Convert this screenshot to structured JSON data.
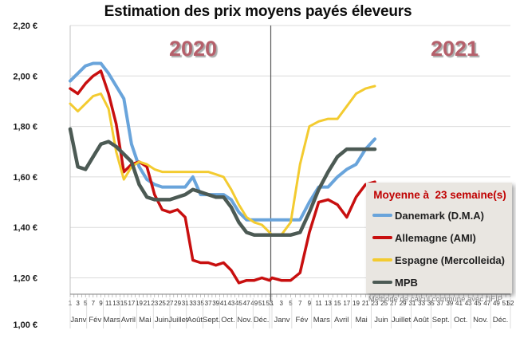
{
  "title": "Estimation des prix moyens payés éleveurs",
  "year_labels": [
    "2020",
    "2021"
  ],
  "footnote": "Méthode de calcul commune avec l'IFIP",
  "legend": {
    "title": "Moyenne à  23 semaine(s)",
    "items": [
      {
        "label": "Danemark (D.M.A)",
        "color": "#69A4DB"
      },
      {
        "label": "Allemagne (AMI)",
        "color": "#C80F0F"
      },
      {
        "label": "Espagne (Mercolleida)",
        "color": "#F3CB30"
      },
      {
        "label": "MPB",
        "color": "#4C5A54"
      }
    ]
  },
  "chart_data": {
    "type": "line",
    "title": "Estimation des prix moyens payés éleveurs",
    "xlabel": "",
    "ylabel": "",
    "ylim": [
      1.13,
      2.2
    ],
    "grid": true,
    "legend_position": "right-middle",
    "y_axis": {
      "ticks": [
        "2,20 €",
        "2,00 €",
        "1,80 €",
        "1,60 €",
        "1,40 €",
        "1,20 €",
        "1,00 €"
      ],
      "values": [
        2.2,
        2.0,
        1.8,
        1.6,
        1.4,
        1.2,
        1.0
      ]
    },
    "x_axis": {
      "weeks_2020": [
        1,
        3,
        5,
        7,
        9,
        11,
        13,
        15,
        17,
        19,
        21,
        23,
        25,
        27,
        29,
        31,
        33,
        35,
        37,
        39,
        41,
        43,
        45,
        47,
        49,
        51,
        53
      ],
      "weeks_2021": [
        1,
        3,
        5,
        7,
        9,
        11,
        13,
        15,
        17,
        19,
        21,
        23,
        25,
        27,
        29,
        31,
        33,
        35,
        37,
        39,
        41,
        43,
        45,
        47,
        49,
        51,
        52
      ],
      "months": [
        "Janv",
        "Fév",
        "Mars",
        "Avril",
        "Mai",
        "Juin",
        "Juillet",
        "Août",
        "Sept.",
        "Oct.",
        "Nov.",
        "Déc."
      ]
    },
    "series": [
      {
        "name": "Danemark (D.M.A)",
        "color": "#69A4DB",
        "y2020": [
          1.98,
          2.01,
          2.04,
          2.05,
          2.05,
          2.01,
          1.96,
          1.91,
          1.73,
          1.64,
          1.59,
          1.57,
          1.56,
          1.56,
          1.56,
          1.56,
          1.6,
          1.53,
          1.53,
          1.53,
          1.53,
          1.51,
          1.46,
          1.43,
          1.43,
          1.43,
          1.43
        ],
        "y2021": [
          1.43,
          1.43,
          1.43,
          1.43,
          1.5,
          1.56,
          1.56,
          1.6,
          1.63,
          1.65,
          1.71,
          1.75
        ]
      },
      {
        "name": "Allemagne (AMI)",
        "color": "#C80F0F",
        "y2020": [
          1.95,
          1.93,
          1.97,
          2.0,
          2.02,
          1.93,
          1.81,
          1.62,
          1.65,
          1.66,
          1.64,
          1.53,
          1.47,
          1.46,
          1.47,
          1.44,
          1.27,
          1.26,
          1.26,
          1.25,
          1.26,
          1.23,
          1.18,
          1.19,
          1.19,
          1.2,
          1.19
        ],
        "y2021": [
          1.2,
          1.19,
          1.19,
          1.22,
          1.38,
          1.5,
          1.51,
          1.49,
          1.44,
          1.52,
          1.57,
          1.58
        ]
      },
      {
        "name": "Espagne (Mercolleida)",
        "color": "#F3CB30",
        "y2020": [
          1.89,
          1.86,
          1.89,
          1.92,
          1.93,
          1.87,
          1.7,
          1.59,
          1.64,
          1.66,
          1.65,
          1.63,
          1.62,
          1.62,
          1.62,
          1.62,
          1.62,
          1.62,
          1.62,
          1.61,
          1.6,
          1.55,
          1.49,
          1.44,
          1.42,
          1.41,
          1.38
        ],
        "y2021": [
          1.37,
          1.37,
          1.42,
          1.65,
          1.8,
          1.82,
          1.83,
          1.83,
          1.88,
          1.93,
          1.95,
          1.96
        ]
      },
      {
        "name": "MPB",
        "color": "#4C5A54",
        "y2020": [
          1.79,
          1.64,
          1.63,
          1.68,
          1.73,
          1.74,
          1.72,
          1.69,
          1.66,
          1.57,
          1.52,
          1.51,
          1.51,
          1.51,
          1.52,
          1.53,
          1.55,
          1.54,
          1.53,
          1.52,
          1.52,
          1.48,
          1.42,
          1.38,
          1.37,
          1.37,
          1.37
        ],
        "y2021": [
          1.37,
          1.37,
          1.37,
          1.38,
          1.46,
          1.55,
          1.62,
          1.68,
          1.71,
          1.71,
          1.71,
          1.71
        ]
      }
    ]
  }
}
